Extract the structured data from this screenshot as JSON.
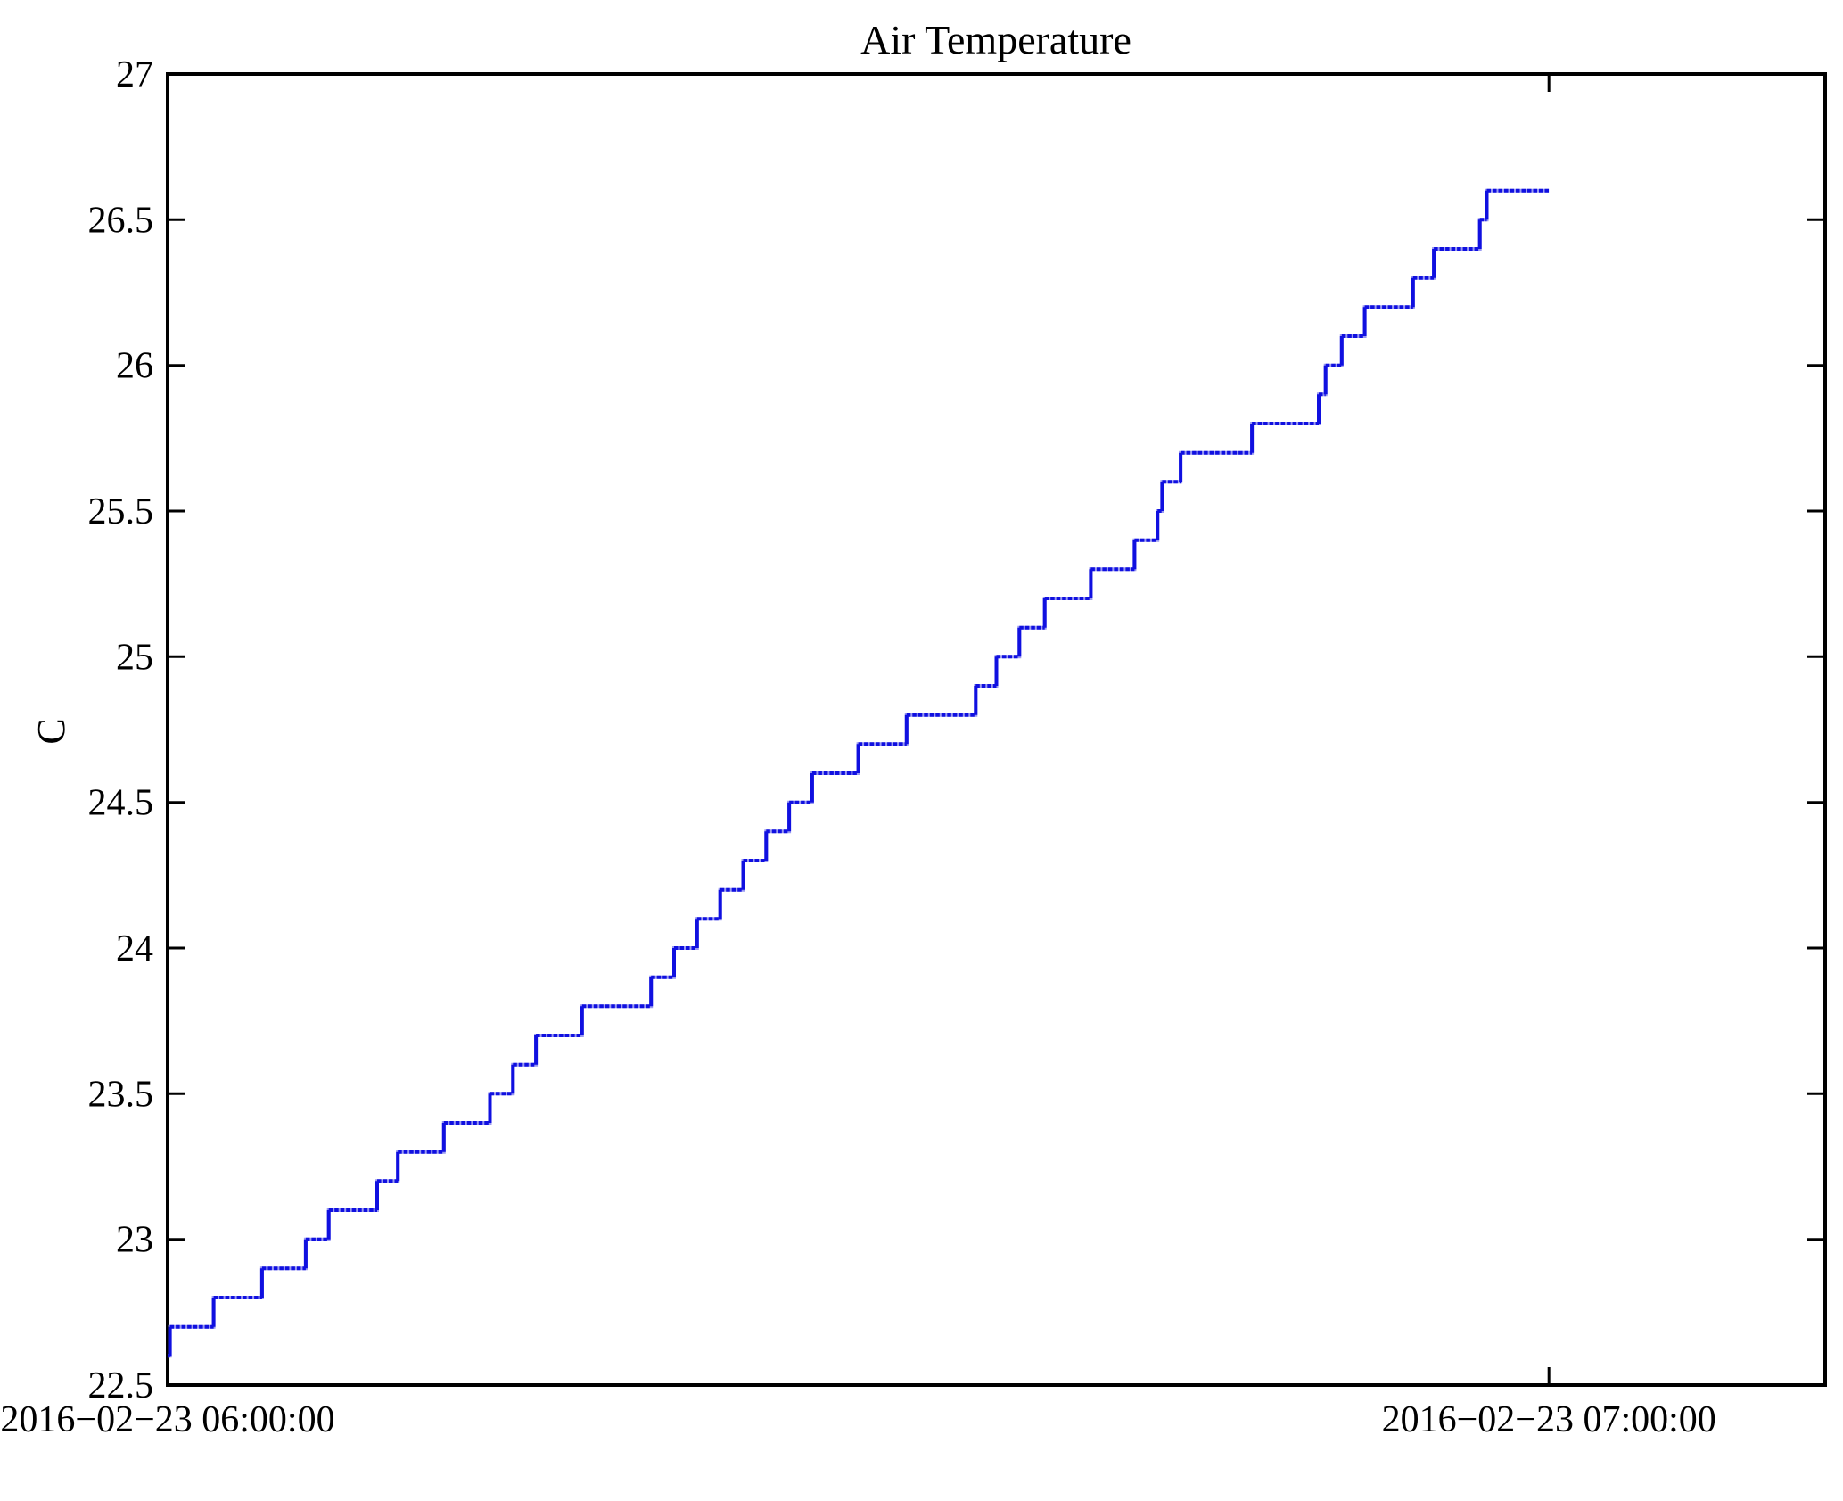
{
  "figure": {
    "background": "#ffffff",
    "axis_color": "#000000"
  },
  "chart_data": {
    "type": "line",
    "subtype": "step-staircase",
    "title": "Air Temperature",
    "xlabel": "",
    "ylabel": "C",
    "grid": false,
    "legend": null,
    "ylim": [
      22.5,
      27
    ],
    "y_ticks": [
      22.5,
      23,
      23.5,
      24,
      24.5,
      25,
      25.5,
      26,
      26.5,
      27
    ],
    "y_tick_labels": [
      "22.5",
      "23",
      "23.5",
      "24",
      "24.5",
      "25",
      "25.5",
      "26",
      "26.5",
      "27"
    ],
    "xlim_minutes": [
      0,
      72
    ],
    "x_tick_minutes": [
      0,
      60
    ],
    "x_tick_labels": [
      "2016−02−23 06:00:00",
      "2016−02−23 07:00:00"
    ],
    "series": [
      {
        "name": "Air Temperature",
        "color": "#1010e0",
        "color_light": "#9a9af2",
        "unit": "C",
        "start_value": 22.6,
        "end_value": 26.6,
        "end_minute": 60,
        "steps_minutes_celsius": [
          [
            0,
            22.6
          ],
          [
            0.1,
            22.7
          ],
          [
            2,
            22.8
          ],
          [
            4.1,
            22.9
          ],
          [
            6,
            23.0
          ],
          [
            7,
            23.1
          ],
          [
            9.1,
            23.2
          ],
          [
            10,
            23.3
          ],
          [
            12,
            23.4
          ],
          [
            14,
            23.5
          ],
          [
            15,
            23.6
          ],
          [
            16,
            23.7
          ],
          [
            18,
            23.8
          ],
          [
            21,
            23.9
          ],
          [
            22,
            24.0
          ],
          [
            23,
            24.1
          ],
          [
            24,
            24.2
          ],
          [
            25,
            24.3
          ],
          [
            26,
            24.4
          ],
          [
            27,
            24.5
          ],
          [
            28,
            24.6
          ],
          [
            30,
            24.7
          ],
          [
            32.1,
            24.8
          ],
          [
            35.1,
            24.9
          ],
          [
            36,
            25.0
          ],
          [
            37,
            25.1
          ],
          [
            38.1,
            25.2
          ],
          [
            40.1,
            25.3
          ],
          [
            42,
            25.4
          ],
          [
            43,
            25.5
          ],
          [
            43.2,
            25.6
          ],
          [
            44,
            25.7
          ],
          [
            47.1,
            25.8
          ],
          [
            50,
            25.9
          ],
          [
            50.3,
            26.0
          ],
          [
            51,
            26.1
          ],
          [
            52,
            26.2
          ],
          [
            54.1,
            26.3
          ],
          [
            55,
            26.4
          ],
          [
            57,
            26.5
          ],
          [
            57.3,
            26.6
          ]
        ]
      }
    ]
  }
}
